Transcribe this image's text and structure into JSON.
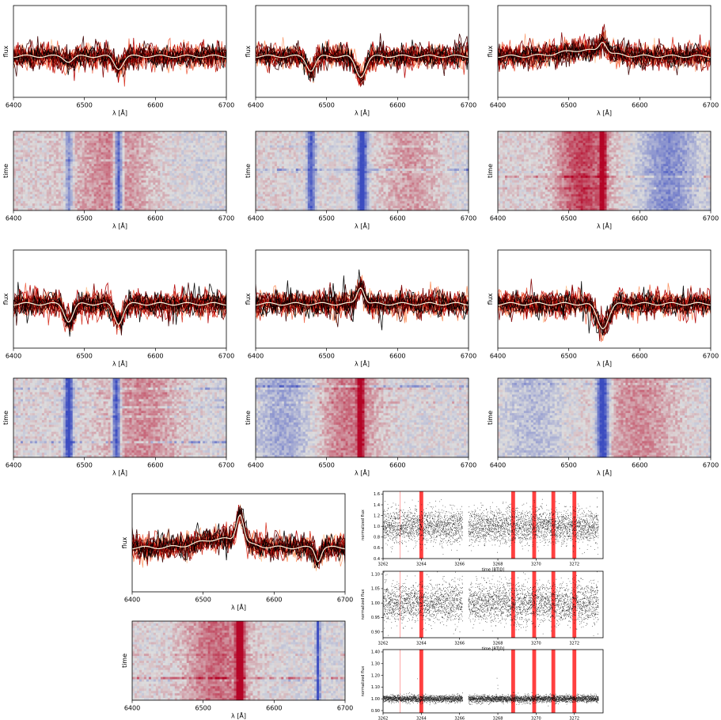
{
  "chart_data": [
    {
      "id": "spec-1",
      "type": "line",
      "x_label": "λ [Å]",
      "y_label": "flux",
      "xlim": [
        6400,
        6700
      ],
      "x_ticks": [
        6400,
        6500,
        6600,
        6700
      ],
      "features": [
        {
          "x": 6478,
          "depth": -0.25,
          "w": 6
        },
        {
          "x": 6548,
          "depth": -0.6,
          "w": 6
        }
      ]
    },
    {
      "id": "spec-2",
      "type": "line",
      "x_label": "λ [Å]",
      "y_label": "flux",
      "xlim": [
        6400,
        6700
      ],
      "x_ticks": [
        6400,
        6500,
        6600,
        6700
      ],
      "features": [
        {
          "x": 6478,
          "depth": -0.7,
          "w": 6
        },
        {
          "x": 6548,
          "depth": -1.0,
          "w": 7
        }
      ]
    },
    {
      "id": "spec-3",
      "type": "line",
      "x_label": "λ [Å]",
      "y_label": "flux",
      "xlim": [
        6400,
        6700
      ],
      "x_ticks": [
        6400,
        6500,
        6600,
        6700
      ],
      "features": [
        {
          "x": 6520,
          "depth": 0.3,
          "w": 30
        },
        {
          "x": 6548,
          "depth": 0.55,
          "w": 5
        }
      ]
    },
    {
      "id": "tmap-1",
      "type": "heatmap",
      "x_label": "λ [Å]",
      "y_label": "time",
      "xlim": [
        6400,
        6700
      ],
      "x_ticks": [
        6400,
        6500,
        6600,
        6700
      ],
      "colormap": [
        "#3b4cc0",
        "#dddddd",
        "#b40426"
      ]
    },
    {
      "id": "tmap-2",
      "type": "heatmap",
      "x_label": "λ [Å]",
      "y_label": "time",
      "xlim": [
        6400,
        6700
      ],
      "x_ticks": [
        6400,
        6500,
        6600,
        6700
      ],
      "colormap": [
        "#3b4cc0",
        "#dddddd",
        "#b40426"
      ]
    },
    {
      "id": "tmap-3",
      "type": "heatmap",
      "x_label": "λ [Å]",
      "y_label": "time",
      "xlim": [
        6400,
        6700
      ],
      "x_ticks": [
        6400,
        6500,
        6600,
        6700
      ],
      "colormap": [
        "#3b4cc0",
        "#dddddd",
        "#b40426"
      ]
    },
    {
      "id": "spec-4",
      "type": "line",
      "x_label": "λ [Å]",
      "y_label": "flux",
      "xlim": [
        6400,
        6700
      ],
      "x_ticks": [
        6400,
        6500,
        6600,
        6700
      ],
      "features": [
        {
          "x": 6478,
          "depth": -0.8,
          "w": 6
        },
        {
          "x": 6548,
          "depth": -0.9,
          "w": 6
        }
      ]
    },
    {
      "id": "spec-5",
      "type": "line",
      "x_label": "λ [Å]",
      "y_label": "flux",
      "xlim": [
        6400,
        6700
      ],
      "x_ticks": [
        6400,
        6500,
        6600,
        6700
      ],
      "features": [
        {
          "x": 6548,
          "depth": 0.8,
          "w": 5
        }
      ]
    },
    {
      "id": "spec-6",
      "type": "line",
      "x_label": "λ [Å]",
      "y_label": "flux",
      "xlim": [
        6400,
        6700
      ],
      "x_ticks": [
        6400,
        6500,
        6600,
        6700
      ],
      "features": [
        {
          "x": 6548,
          "depth": -1.1,
          "w": 8
        }
      ]
    },
    {
      "id": "tmap-4",
      "type": "heatmap",
      "x_label": "λ [Å]",
      "y_label": "time",
      "xlim": [
        6400,
        6700
      ],
      "x_ticks": [
        6400,
        6500,
        6600,
        6700
      ],
      "colormap": [
        "#3b4cc0",
        "#dddddd",
        "#b40426"
      ]
    },
    {
      "id": "tmap-5",
      "type": "heatmap",
      "x_label": "λ [Å]",
      "y_label": "time",
      "xlim": [
        6400,
        6700
      ],
      "x_ticks": [
        6400,
        6500,
        6600,
        6700
      ],
      "colormap": [
        "#3b4cc0",
        "#dddddd",
        "#b40426"
      ]
    },
    {
      "id": "tmap-6",
      "type": "heatmap",
      "x_label": "λ [Å]",
      "y_label": "time",
      "xlim": [
        6400,
        6700
      ],
      "x_ticks": [
        6400,
        6500,
        6600,
        6700
      ],
      "colormap": [
        "#3b4cc0",
        "#dddddd",
        "#b40426"
      ]
    },
    {
      "id": "spec-7",
      "type": "line",
      "x_label": "λ [Å]",
      "y_label": "flux",
      "xlim": [
        6400,
        6700
      ],
      "x_ticks": [
        6400,
        6500,
        6600,
        6700
      ],
      "features": [
        {
          "x": 6525,
          "depth": 0.4,
          "w": 30
        },
        {
          "x": 6552,
          "depth": 1.3,
          "w": 5
        },
        {
          "x": 6662,
          "depth": -0.6,
          "w": 4
        }
      ]
    },
    {
      "id": "tmap-7",
      "type": "heatmap",
      "x_label": "λ [Å]",
      "y_label": "time",
      "xlim": [
        6400,
        6700
      ],
      "x_ticks": [
        6400,
        6500,
        6600,
        6700
      ],
      "colormap": [
        "#3b4cc0",
        "#dddddd",
        "#b40426"
      ]
    },
    {
      "id": "lc-1",
      "type": "scatter",
      "x_label": "time [BTJD]",
      "y_label": "normalized flux",
      "xlim": [
        3262,
        3273.5
      ],
      "ylim": [
        0.4,
        1.65
      ],
      "x_ticks": [
        3262,
        3264,
        3266,
        3268,
        3270,
        3272
      ],
      "y_ticks": [
        0.4,
        0.6,
        0.8,
        1.0,
        1.2,
        1.4,
        1.6
      ],
      "gap": [
        3266.15,
        3266.45
      ],
      "highlight_bands": [
        [
          3263.9,
          3264.1
        ],
        [
          3268.7,
          3268.9
        ],
        [
          3269.8,
          3270.0
        ],
        [
          3270.8,
          3271.0
        ],
        [
          3271.9,
          3272.1
        ]
      ],
      "highlight_color": "#ff0000"
    },
    {
      "id": "lc-2",
      "type": "scatter",
      "x_label": "time [BTJD]",
      "y_label": "normalized flux",
      "xlim": [
        3262,
        3273.5
      ],
      "ylim": [
        0.88,
        1.11
      ],
      "x_ticks": [
        3262,
        3264,
        3266,
        3268,
        3270,
        3272
      ],
      "y_ticks": [
        0.9,
        0.95,
        1.0,
        1.05,
        1.1
      ],
      "gap": [
        3266.15,
        3266.45
      ],
      "highlight_bands": [
        [
          3263.9,
          3264.1
        ],
        [
          3268.7,
          3268.9
        ],
        [
          3269.8,
          3270.0
        ],
        [
          3270.8,
          3271.0
        ],
        [
          3271.9,
          3272.1
        ]
      ],
      "highlight_color": "#ff0000"
    },
    {
      "id": "lc-3",
      "type": "scatter",
      "x_label": "",
      "y_label": "normalized flux",
      "xlim": [
        3262,
        3273.5
      ],
      "ylim": [
        0.88,
        1.42
      ],
      "x_ticks": [
        3262,
        3264,
        3266,
        3268,
        3270,
        3272
      ],
      "y_ticks": [
        0.9,
        1.0,
        1.1,
        1.2,
        1.3,
        1.4
      ],
      "gap": [
        3266.15,
        3266.45
      ],
      "highlight_bands": [
        [
          3263.9,
          3264.1
        ],
        [
          3268.7,
          3268.9
        ],
        [
          3269.8,
          3270.0
        ],
        [
          3270.8,
          3271.0
        ],
        [
          3271.9,
          3272.1
        ]
      ],
      "highlight_color": "#ff0000"
    }
  ]
}
